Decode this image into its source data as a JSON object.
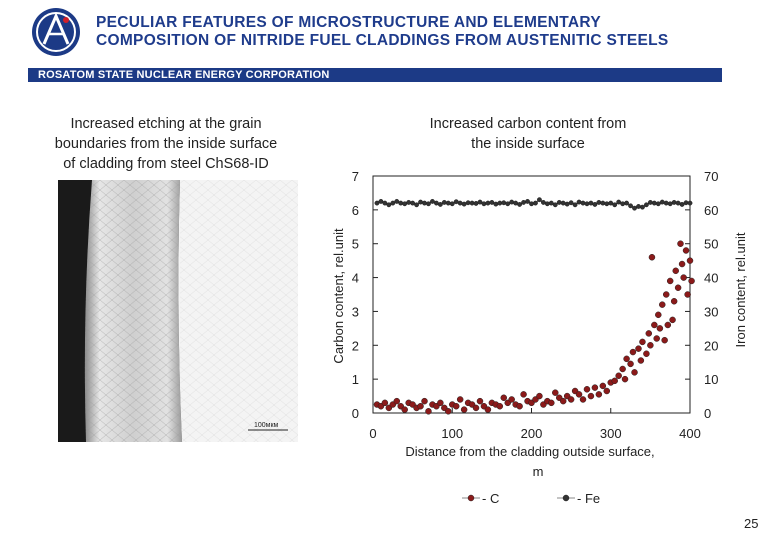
{
  "header": {
    "title_line1": "PECULIAR  FEATURES  OF  MICROSTRUCTURE  AND  ELEMENTARY",
    "title_line2": "COMPOSITION  OF  NITRIDE  FUEL CLADDINGS FROM AUSTENITIC STEELS",
    "banner": "ROSATOM STATE NUCLEAR ENERGY CORPORATION"
  },
  "left_caption": [
    "Increased etching at the grain",
    "boundaries from the inside surface",
    "of cladding from steel ChS68-ID"
  ],
  "micrograph": {
    "scale_label": "100мкм"
  },
  "right_caption": [
    "Increased carbon content from",
    "the inside surface"
  ],
  "chart_data": {
    "type": "scatter",
    "xlabel_line1": "Distance from the cladding outside surface,",
    "xlabel_line2": "m",
    "xlabel_symbol": "",
    "ylabel_left": "Carbon content, rel.unit",
    "ylabel_right": "Iron content, rel.unit",
    "xlim": [
      0,
      400
    ],
    "ylim_left": [
      0,
      7
    ],
    "ylim_right": [
      0,
      70
    ],
    "x_ticks": [
      "0",
      "100",
      "200",
      "300",
      "400"
    ],
    "y_left_ticks": [
      "0",
      "1",
      "2",
      "3",
      "4",
      "5",
      "6",
      "7"
    ],
    "y_right_ticks": [
      "0",
      "10",
      "20",
      "30",
      "40",
      "50",
      "60",
      "70"
    ],
    "legend": [
      {
        "label": "- C",
        "color": "#8b1a1a"
      },
      {
        "label": "- Fe",
        "color": "#333333"
      }
    ],
    "series": [
      {
        "name": "C",
        "color": "#8b1a1a",
        "axis": "left",
        "points": [
          [
            5,
            0.25
          ],
          [
            10,
            0.2
          ],
          [
            15,
            0.3
          ],
          [
            20,
            0.15
          ],
          [
            25,
            0.25
          ],
          [
            30,
            0.35
          ],
          [
            35,
            0.2
          ],
          [
            40,
            0.1
          ],
          [
            45,
            0.3
          ],
          [
            50,
            0.25
          ],
          [
            55,
            0.15
          ],
          [
            60,
            0.2
          ],
          [
            65,
            0.35
          ],
          [
            70,
            0.05
          ],
          [
            75,
            0.25
          ],
          [
            80,
            0.2
          ],
          [
            85,
            0.3
          ],
          [
            90,
            0.15
          ],
          [
            95,
            0.05
          ],
          [
            100,
            0.25
          ],
          [
            105,
            0.2
          ],
          [
            110,
            0.4
          ],
          [
            115,
            0.1
          ],
          [
            120,
            0.3
          ],
          [
            125,
            0.25
          ],
          [
            130,
            0.15
          ],
          [
            135,
            0.35
          ],
          [
            140,
            0.2
          ],
          [
            145,
            0.1
          ],
          [
            150,
            0.3
          ],
          [
            155,
            0.25
          ],
          [
            160,
            0.2
          ],
          [
            165,
            0.45
          ],
          [
            170,
            0.3
          ],
          [
            175,
            0.4
          ],
          [
            180,
            0.25
          ],
          [
            185,
            0.2
          ],
          [
            190,
            0.55
          ],
          [
            195,
            0.35
          ],
          [
            200,
            0.3
          ],
          [
            205,
            0.4
          ],
          [
            210,
            0.5
          ],
          [
            215,
            0.25
          ],
          [
            220,
            0.35
          ],
          [
            225,
            0.3
          ],
          [
            230,
            0.6
          ],
          [
            235,
            0.45
          ],
          [
            240,
            0.35
          ],
          [
            245,
            0.5
          ],
          [
            250,
            0.4
          ],
          [
            255,
            0.65
          ],
          [
            260,
            0.55
          ],
          [
            265,
            0.4
          ],
          [
            270,
            0.7
          ],
          [
            275,
            0.5
          ],
          [
            280,
            0.75
          ],
          [
            285,
            0.55
          ],
          [
            290,
            0.8
          ],
          [
            295,
            0.65
          ],
          [
            300,
            0.9
          ],
          [
            305,
            0.95
          ],
          [
            310,
            1.1
          ],
          [
            315,
            1.3
          ],
          [
            318,
            1.0
          ],
          [
            320,
            1.6
          ],
          [
            325,
            1.45
          ],
          [
            328,
            1.8
          ],
          [
            330,
            1.2
          ],
          [
            335,
            1.9
          ],
          [
            338,
            1.55
          ],
          [
            340,
            2.1
          ],
          [
            345,
            1.75
          ],
          [
            348,
            2.35
          ],
          [
            350,
            2.0
          ],
          [
            352,
            4.6
          ],
          [
            355,
            2.6
          ],
          [
            358,
            2.2
          ],
          [
            360,
            2.9
          ],
          [
            362,
            2.5
          ],
          [
            365,
            3.2
          ],
          [
            368,
            2.15
          ],
          [
            370,
            3.5
          ],
          [
            372,
            2.6
          ],
          [
            375,
            3.9
          ],
          [
            378,
            2.75
          ],
          [
            380,
            3.3
          ],
          [
            382,
            4.2
          ],
          [
            385,
            3.7
          ],
          [
            388,
            5.0
          ],
          [
            390,
            4.4
          ],
          [
            392,
            4.0
          ],
          [
            395,
            4.8
          ],
          [
            397,
            3.5
          ],
          [
            400,
            4.5
          ],
          [
            402,
            3.9
          ]
        ]
      },
      {
        "name": "Fe",
        "color": "#333333",
        "axis": "right",
        "points": [
          [
            5,
            62
          ],
          [
            10,
            62.5
          ],
          [
            15,
            62
          ],
          [
            20,
            61.5
          ],
          [
            25,
            62
          ],
          [
            30,
            62.5
          ],
          [
            35,
            62
          ],
          [
            40,
            61.8
          ],
          [
            45,
            62.2
          ],
          [
            50,
            62
          ],
          [
            55,
            61.5
          ],
          [
            60,
            62.3
          ],
          [
            65,
            62
          ],
          [
            70,
            61.8
          ],
          [
            75,
            62.5
          ],
          [
            80,
            62
          ],
          [
            85,
            61.6
          ],
          [
            90,
            62.2
          ],
          [
            95,
            62
          ],
          [
            100,
            61.8
          ],
          [
            105,
            62.4
          ],
          [
            110,
            62
          ],
          [
            115,
            61.7
          ],
          [
            120,
            62.1
          ],
          [
            125,
            62
          ],
          [
            130,
            61.9
          ],
          [
            135,
            62.3
          ],
          [
            140,
            61.8
          ],
          [
            145,
            62
          ],
          [
            150,
            62.2
          ],
          [
            155,
            61.7
          ],
          [
            160,
            62
          ],
          [
            165,
            62.1
          ],
          [
            170,
            61.8
          ],
          [
            175,
            62.3
          ],
          [
            180,
            62
          ],
          [
            185,
            61.6
          ],
          [
            190,
            62.2
          ],
          [
            195,
            62.5
          ],
          [
            200,
            61.8
          ],
          [
            205,
            62
          ],
          [
            210,
            63
          ],
          [
            215,
            62.2
          ],
          [
            220,
            61.8
          ],
          [
            225,
            62
          ],
          [
            230,
            61.5
          ],
          [
            235,
            62.2
          ],
          [
            240,
            62
          ],
          [
            245,
            61.7
          ],
          [
            250,
            62.1
          ],
          [
            255,
            61.5
          ],
          [
            260,
            62.3
          ],
          [
            265,
            62
          ],
          [
            270,
            61.8
          ],
          [
            275,
            62
          ],
          [
            280,
            61.6
          ],
          [
            285,
            62.2
          ],
          [
            290,
            62
          ],
          [
            295,
            61.8
          ],
          [
            300,
            62
          ],
          [
            305,
            61.5
          ],
          [
            310,
            62.3
          ],
          [
            315,
            61.8
          ],
          [
            320,
            62
          ],
          [
            325,
            61.2
          ],
          [
            330,
            60.5
          ],
          [
            335,
            61
          ],
          [
            340,
            60.8
          ],
          [
            345,
            61.5
          ],
          [
            350,
            62.2
          ],
          [
            355,
            62
          ],
          [
            360,
            61.8
          ],
          [
            365,
            62.3
          ],
          [
            370,
            62
          ],
          [
            375,
            61.8
          ],
          [
            380,
            62.2
          ],
          [
            385,
            62
          ],
          [
            390,
            61.6
          ],
          [
            395,
            62.1
          ],
          [
            400,
            62
          ]
        ]
      }
    ]
  },
  "page_number": "25"
}
